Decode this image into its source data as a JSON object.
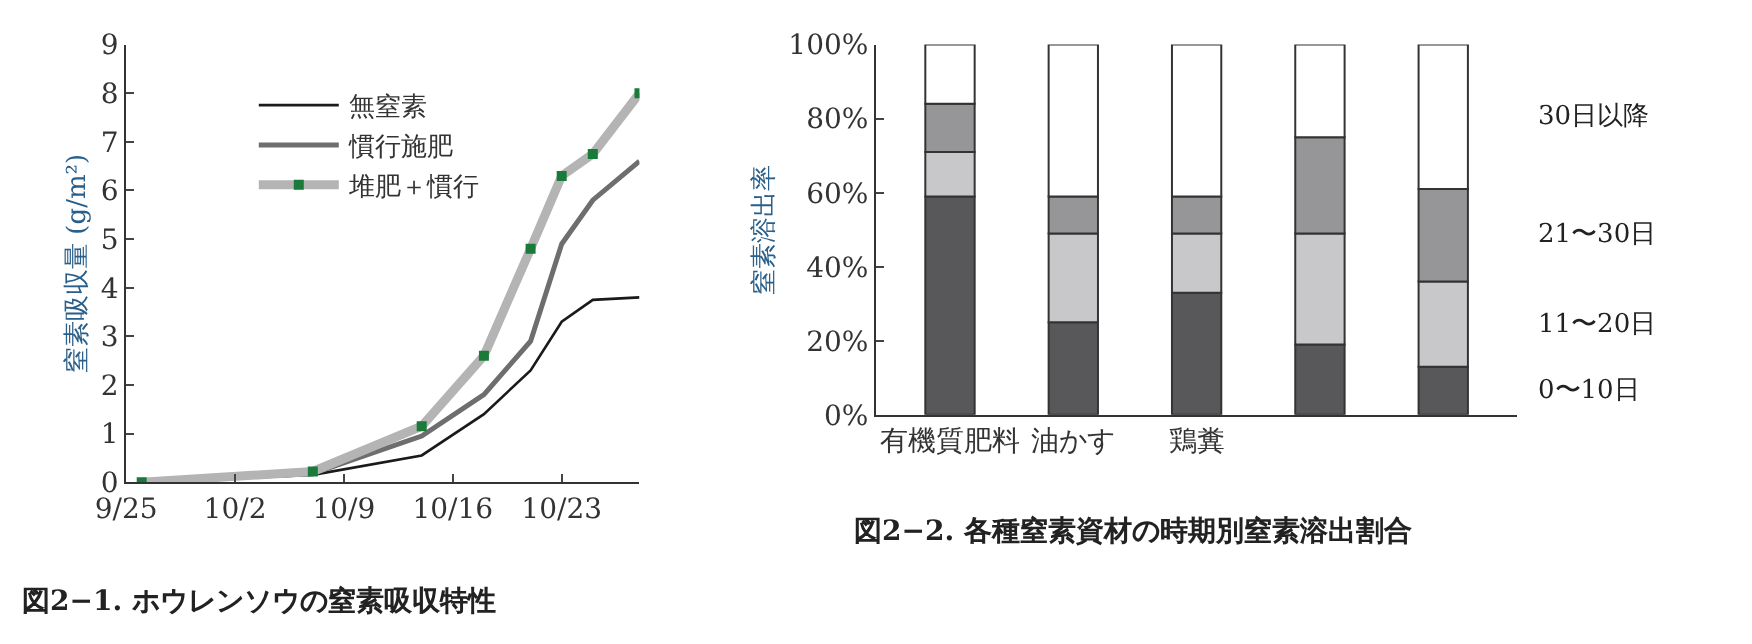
{
  "chart_data": [
    {
      "type": "line",
      "title": "図2−1. ホウレンソウの窒素吸収特性",
      "ylabel": "窒素吸収量 (g/m²)",
      "x": [
        "--09-26",
        "--10-07",
        "--10-14",
        "--10-18",
        "--10-21",
        "--10-23",
        "--10-25",
        "--10-28"
      ],
      "series": [
        {
          "name": "無窒素",
          "color": "#1a1a1a",
          "values": [
            0,
            0.15,
            0.55,
            1.4,
            2.3,
            3.3,
            3.75,
            3.8
          ],
          "marker": "none"
        },
        {
          "name": "慣行施肥",
          "color": "#6e6e6e",
          "values": [
            0,
            0.18,
            0.95,
            1.8,
            2.9,
            4.9,
            5.8,
            6.6
          ],
          "marker": "none"
        },
        {
          "name": "堆肥＋慣行",
          "color": "#b4b4b4",
          "values": [
            0,
            0.22,
            1.15,
            2.6,
            4.8,
            6.3,
            6.75,
            8.0
          ],
          "marker": "square"
        }
      ],
      "xlim": [
        "--09-25",
        "--10-28"
      ],
      "xticks": [
        {
          "value": "--09-25",
          "label": "9/25"
        },
        {
          "value": "--10-02",
          "label": "10/2"
        },
        {
          "value": "--10-09",
          "label": "10/9"
        },
        {
          "value": "--10-16",
          "label": "10/16"
        },
        {
          "value": "--10-23",
          "label": "10/23"
        }
      ],
      "ylim": [
        0,
        9
      ],
      "yticks": [
        0,
        1,
        2,
        3,
        4,
        5,
        6,
        7,
        8,
        9
      ],
      "legend": "top left"
    },
    {
      "type": "bar",
      "stacked": true,
      "title": "図2−2. 各種窒素資材の時期別窒素溶出割合",
      "ylabel": "窒素溶出率",
      "categories": [
        "有機質肥料",
        "油かす",
        "鶏糞",
        null,
        null
      ],
      "series": [
        {
          "name": "0〜10日",
          "color": "#58585a",
          "values": [
            59,
            25,
            33,
            19,
            13
          ]
        },
        {
          "name": "11〜20日",
          "color": "#c8c8ca",
          "values": [
            12,
            24,
            16,
            30,
            23
          ]
        },
        {
          "name": "21〜30日",
          "color": "#969698",
          "values": [
            13,
            10,
            10,
            26,
            25
          ]
        },
        {
          "name": "30日以降",
          "color": "#ffffff",
          "values": [
            16,
            41,
            41,
            25,
            39
          ]
        }
      ],
      "ylim": [
        0,
        100
      ],
      "yticks": [
        {
          "value": 0,
          "label": "0%"
        },
        {
          "value": 20,
          "label": "20%"
        },
        {
          "value": 40,
          "label": "40%"
        },
        {
          "value": 60,
          "label": "60%"
        },
        {
          "value": 80,
          "label": "80%"
        },
        {
          "value": 100,
          "label": "100%"
        }
      ],
      "legend": "right"
    }
  ]
}
